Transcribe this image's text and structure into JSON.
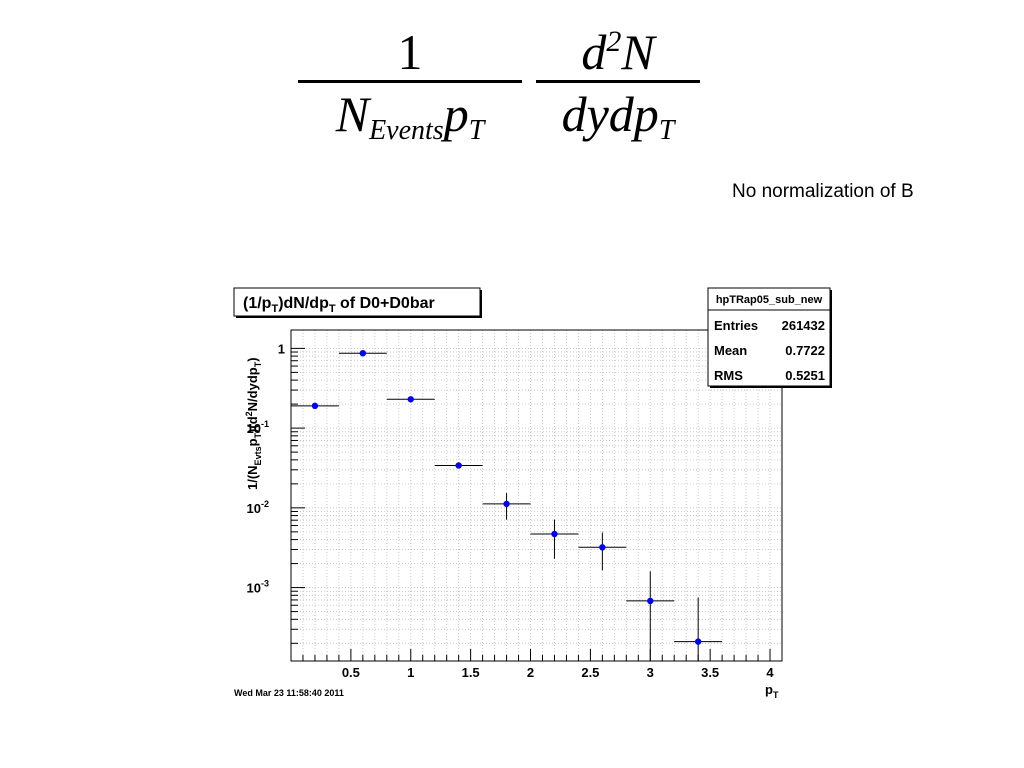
{
  "formula": {
    "num1": "1",
    "den1_main": "N",
    "den1_sub": "Events",
    "den1_p": "p",
    "den1_psub": "T",
    "num2_d": "d",
    "num2_sup": "2",
    "num2_N": "N",
    "den2": "dydp",
    "den2_sub": "T"
  },
  "note": "No normalization of B",
  "plot_title": {
    "main": "(1/p",
    "sub1": "T",
    "mid": ")dN/dp",
    "sub2": "T",
    "tail": " of D0+D0bar"
  },
  "stats": {
    "name": "hpTRap05_sub_new",
    "rows": [
      {
        "label": "Entries",
        "value": "261432"
      },
      {
        "label": "Mean",
        "value": "0.7722"
      },
      {
        "label": "RMS",
        "value": "0.5251"
      }
    ]
  },
  "timestamp": "Wed Mar 23 11:58:40 2011",
  "colors": {
    "marker": "#0000ff",
    "grid": "#bdbdbd",
    "frame": "#000000"
  },
  "chart_data": {
    "type": "scatter",
    "xlabel": "p_T",
    "ylabel": "1/(N_Evts p_T)(d^2N/dydp_T)",
    "xlim": [
      0.0,
      4.1
    ],
    "ylim": [
      0.00012,
      1.7
    ],
    "yscale": "log",
    "grid": true,
    "x_ticks": [
      {
        "value": 0.5,
        "label": "0.5"
      },
      {
        "value": 1,
        "label": "1"
      },
      {
        "value": 1.5,
        "label": "1.5"
      },
      {
        "value": 2,
        "label": "2"
      },
      {
        "value": 2.5,
        "label": "2.5"
      },
      {
        "value": 3,
        "label": "3"
      },
      {
        "value": 3.5,
        "label": "3.5"
      },
      {
        "value": 4,
        "label": "4"
      }
    ],
    "y_ticks": [
      {
        "value": 1,
        "base": "1",
        "exp": ""
      },
      {
        "value": 0.1,
        "base": "10",
        "exp": "-1"
      },
      {
        "value": 0.01,
        "base": "10",
        "exp": "-2"
      },
      {
        "value": 0.001,
        "base": "10",
        "exp": "-3"
      }
    ],
    "points": [
      {
        "x": 0.2,
        "xerr": 0.2,
        "y": 0.19,
        "ylo": 0.19,
        "yhi": 0.19
      },
      {
        "x": 0.6,
        "xerr": 0.2,
        "y": 0.87,
        "ylo": 0.87,
        "yhi": 0.87
      },
      {
        "x": 1.0,
        "xerr": 0.2,
        "y": 0.23,
        "ylo": 0.23,
        "yhi": 0.23
      },
      {
        "x": 1.4,
        "xerr": 0.2,
        "y": 0.034,
        "ylo": 0.034,
        "yhi": 0.034
      },
      {
        "x": 1.8,
        "xerr": 0.2,
        "y": 0.0112,
        "ylo": 0.0071,
        "yhi": 0.0153
      },
      {
        "x": 2.2,
        "xerr": 0.2,
        "y": 0.0047,
        "ylo": 0.0023,
        "yhi": 0.0071
      },
      {
        "x": 2.6,
        "xerr": 0.2,
        "y": 0.0032,
        "ylo": 0.00165,
        "yhi": 0.0049
      },
      {
        "x": 3.0,
        "xerr": 0.2,
        "y": 0.00068,
        "ylo": 0.00012,
        "yhi": 0.0016
      },
      {
        "x": 3.4,
        "xerr": 0.2,
        "y": 0.00021,
        "ylo": 0.00012,
        "yhi": 0.00075
      }
    ]
  }
}
